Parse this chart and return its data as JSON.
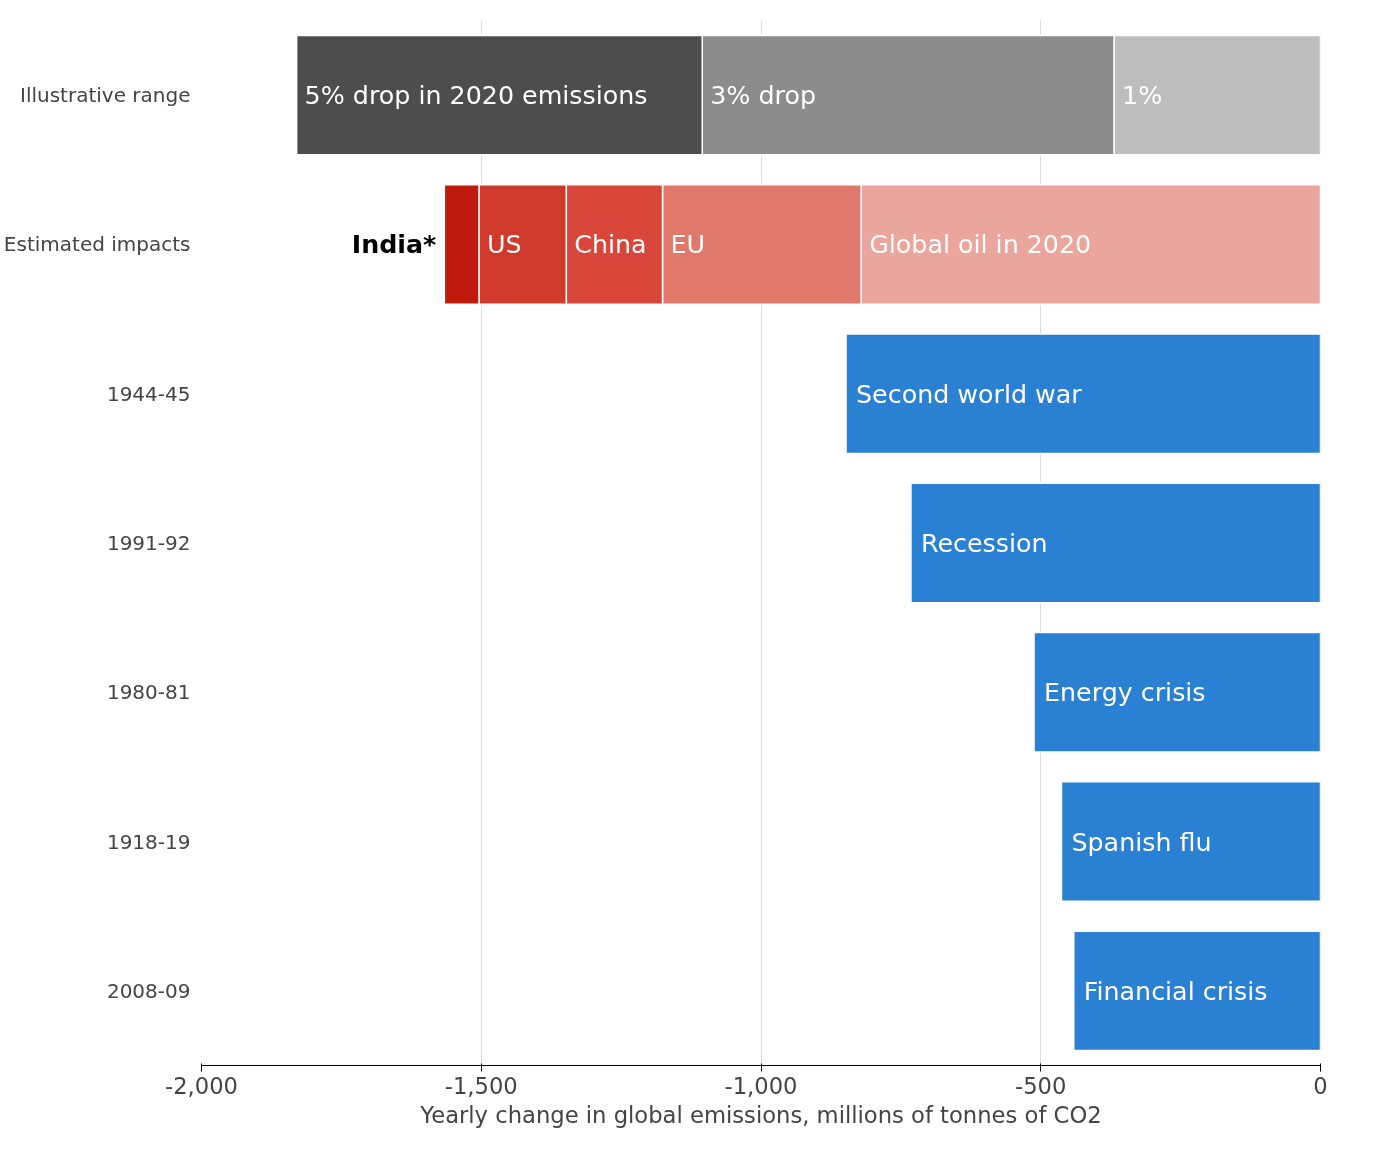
{
  "chart_data": {
    "type": "bar",
    "orientation": "horizontal",
    "stacked": true,
    "categories": [
      "Illustrative range",
      "Estimated impacts",
      "1944-45",
      "1991-92",
      "1980-81",
      "1918-19",
      "2008-09"
    ],
    "series": [
      {
        "name": "1%",
        "color": "#bdbdbd",
        "values": [
          -369,
          null,
          null,
          null,
          null,
          null,
          null
        ]
      },
      {
        "name": "3% drop",
        "color": "#8c8c8c",
        "values": [
          -736,
          null,
          null,
          null,
          null,
          null,
          null
        ]
      },
      {
        "name": "5% drop in 2020 emissions",
        "color": "#4d4d4d",
        "values": [
          -725,
          null,
          null,
          null,
          null,
          null,
          null
        ]
      },
      {
        "name": "Global oil in 2020",
        "color": "#eaa59c",
        "values": [
          null,
          -821,
          null,
          null,
          null,
          null,
          null
        ]
      },
      {
        "name": "EU",
        "color": "#e0796b",
        "values": [
          null,
          -355,
          null,
          null,
          null,
          null,
          null
        ]
      },
      {
        "name": "China",
        "color": "#d9473a",
        "values": [
          null,
          -172,
          null,
          null,
          null,
          null,
          null
        ]
      },
      {
        "name": "US",
        "color": "#cf3a2c",
        "values": [
          null,
          -156,
          null,
          null,
          null,
          null,
          null
        ]
      },
      {
        "name": "India*",
        "color": "#c01a0e",
        "values": [
          null,
          -62,
          null,
          null,
          null,
          null,
          null
        ]
      },
      {
        "color": "#2a80d2",
        "values": [
          null,
          null,
          -848,
          -732,
          -512,
          -463,
          -441
        ]
      }
    ],
    "annotations": [
      {
        "text": "Second world war",
        "x": -848,
        "y": "1944-45"
      },
      {
        "text": "Recession",
        "x": -732,
        "y": "1991-92"
      },
      {
        "text": "Energy crisis",
        "x": -512,
        "y": "1980-81"
      },
      {
        "text": "Spanish flu",
        "x": -463,
        "y": "1918-19"
      },
      {
        "text": "Financial crisis",
        "x": -441,
        "y": "2008-09"
      }
    ],
    "xlabel": "Yearly change in global emissions, millions of tonnes of CO2",
    "xlim": [
      -2000,
      0
    ],
    "xticks": [
      {
        "value": -2000,
        "label": "-2,000"
      },
      {
        "value": -1500,
        "label": "-1,500"
      },
      {
        "value": -1000,
        "label": "-1,000"
      },
      {
        "value": -500,
        "label": "-500"
      },
      0
    ],
    "grid": "x"
  }
}
